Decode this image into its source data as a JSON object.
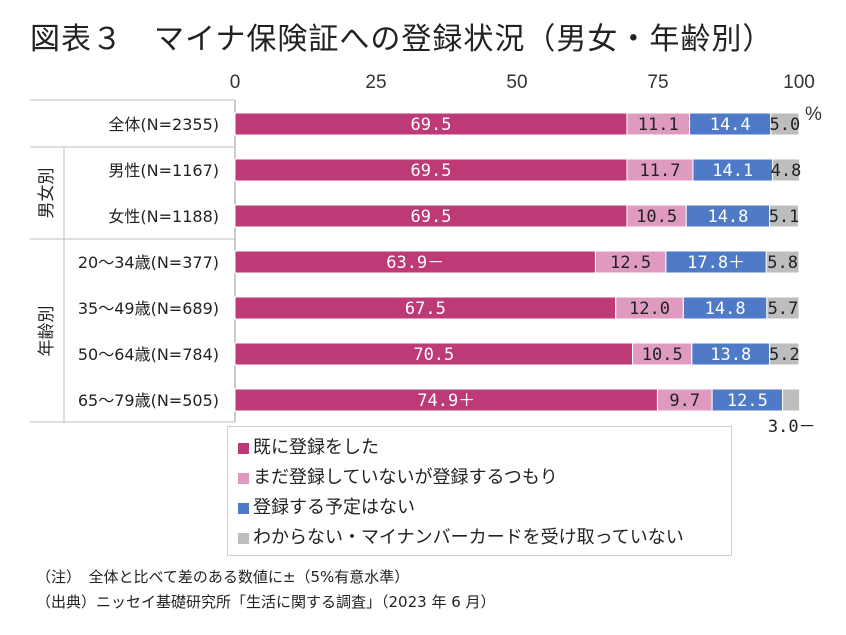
{
  "title": "図表３　マイナ保険証への登録状況（男女・年齢別）",
  "chart_data": {
    "type": "bar",
    "orientation": "horizontal",
    "stacked": true,
    "xlim": [
      0,
      100
    ],
    "x_ticks": [
      "0",
      "25",
      "50",
      "75",
      "100"
    ],
    "unit": "%",
    "groups": [
      {
        "label": "男女別",
        "categories": [
          "男性(N=1167)",
          "女性(N=1188)"
        ]
      },
      {
        "label": "年齢別",
        "categories": [
          "20～34歳(N=377)",
          "35～49歳(N=689)",
          "50～64歳(N=784)",
          "65～79歳(N=505)"
        ]
      }
    ],
    "categories": [
      "全体(N=2355)",
      "男性(N=1167)",
      "女性(N=1188)",
      "20～34歳(N=377)",
      "35～49歳(N=689)",
      "50～64歳(N=784)",
      "65～79歳(N=505)"
    ],
    "series": [
      {
        "name": "既に登録をした",
        "color": "#be3a77",
        "values": [
          69.5,
          69.5,
          69.5,
          63.9,
          67.5,
          70.5,
          74.9
        ],
        "labels": [
          "69.5",
          "69.5",
          "69.5",
          "63.9－",
          "67.5",
          "70.5",
          "74.9＋"
        ]
      },
      {
        "name": "まだ登録していないが登録するつもり",
        "color": "#df9bbf",
        "values": [
          11.1,
          11.7,
          10.5,
          12.5,
          12.0,
          10.5,
          9.7
        ],
        "labels": [
          "11.1",
          "11.7",
          "10.5",
          "12.5",
          "12.0",
          "10.5",
          "9.7"
        ]
      },
      {
        "name": "登録する予定はない",
        "color": "#4f7ac7",
        "values": [
          14.4,
          14.1,
          14.8,
          17.8,
          14.8,
          13.8,
          12.5
        ],
        "labels": [
          "14.4",
          "14.1",
          "14.8",
          "17.8＋",
          "14.8",
          "13.8",
          "12.5"
        ]
      },
      {
        "name": "わからない・マイナンバーカードを受け取っていない",
        "color": "#bdbdbd",
        "values": [
          5.0,
          4.8,
          5.1,
          5.8,
          5.7,
          5.2,
          3.0
        ],
        "labels": [
          "5.0",
          "4.8",
          "5.1",
          "5.8",
          "5.7",
          "5.2",
          "3.0－"
        ]
      }
    ]
  },
  "notes": {
    "note1": "（注）　全体と比べて差のある数値に±（5%有意水準）",
    "note2": "（出典）ニッセイ基礎研究所「生活に関する調査」（2023 年 6 月）"
  }
}
